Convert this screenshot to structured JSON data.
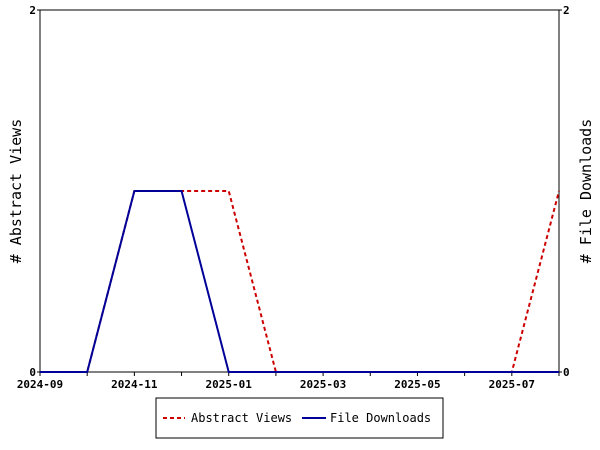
{
  "chart_data": {
    "type": "line",
    "x": [
      "2024-09",
      "2024-10",
      "2024-11",
      "2024-12",
      "2025-01",
      "2025-02",
      "2025-03",
      "2025-04",
      "2025-05",
      "2025-06",
      "2025-07",
      "2025-08"
    ],
    "series": [
      {
        "name": "Abstract Views",
        "values": [
          0,
          0,
          1,
          1,
          1,
          0,
          0,
          0,
          0,
          0,
          0,
          1
        ],
        "color": "#cc0000",
        "style": "dashed"
      },
      {
        "name": "File Downloads",
        "values": [
          0,
          0,
          1,
          1,
          0,
          0,
          0,
          0,
          0,
          0,
          0,
          0
        ],
        "color": "#000099",
        "style": "solid"
      }
    ],
    "xlabel": "",
    "ylabel": "# Abstract Views",
    "y2label": "# File Downloads",
    "ylim": [
      0,
      2
    ],
    "y2lim": [
      0,
      2
    ],
    "y_ticks": [
      "0",
      "2"
    ],
    "y2_ticks": [
      "0",
      "2"
    ],
    "x_tick_labels": [
      "2024-09",
      "2024-11",
      "2025-01",
      "2025-03",
      "2025-05",
      "2025-07"
    ],
    "grid": false,
    "legend_position": "bottom"
  }
}
